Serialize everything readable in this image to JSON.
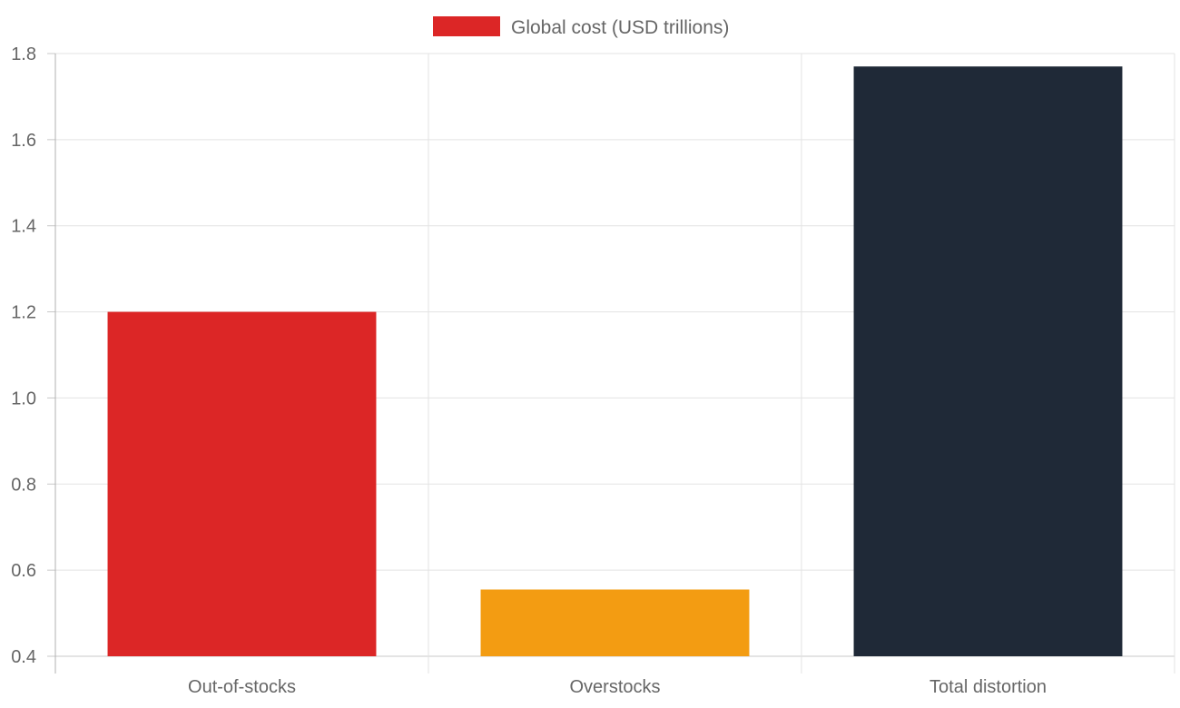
{
  "chart_data": {
    "type": "bar",
    "categories": [
      "Out-of-stocks",
      "Overstocks",
      "Total distortion"
    ],
    "series": [
      {
        "name": "Global cost (USD trillions)",
        "values": [
          1.2,
          0.555,
          1.77
        ]
      }
    ],
    "bar_colors": [
      "#dc2626",
      "#f39c12",
      "#1f2937"
    ],
    "legend_color": "#dc2626",
    "legend_position": "top-center",
    "ylim": [
      0.4,
      1.8
    ],
    "yticks": [
      "0.4",
      "0.6",
      "0.8",
      "1.0",
      "1.2",
      "1.4",
      "1.6",
      "1.8"
    ],
    "grid": true,
    "title": "",
    "xlabel": "",
    "ylabel": ""
  }
}
